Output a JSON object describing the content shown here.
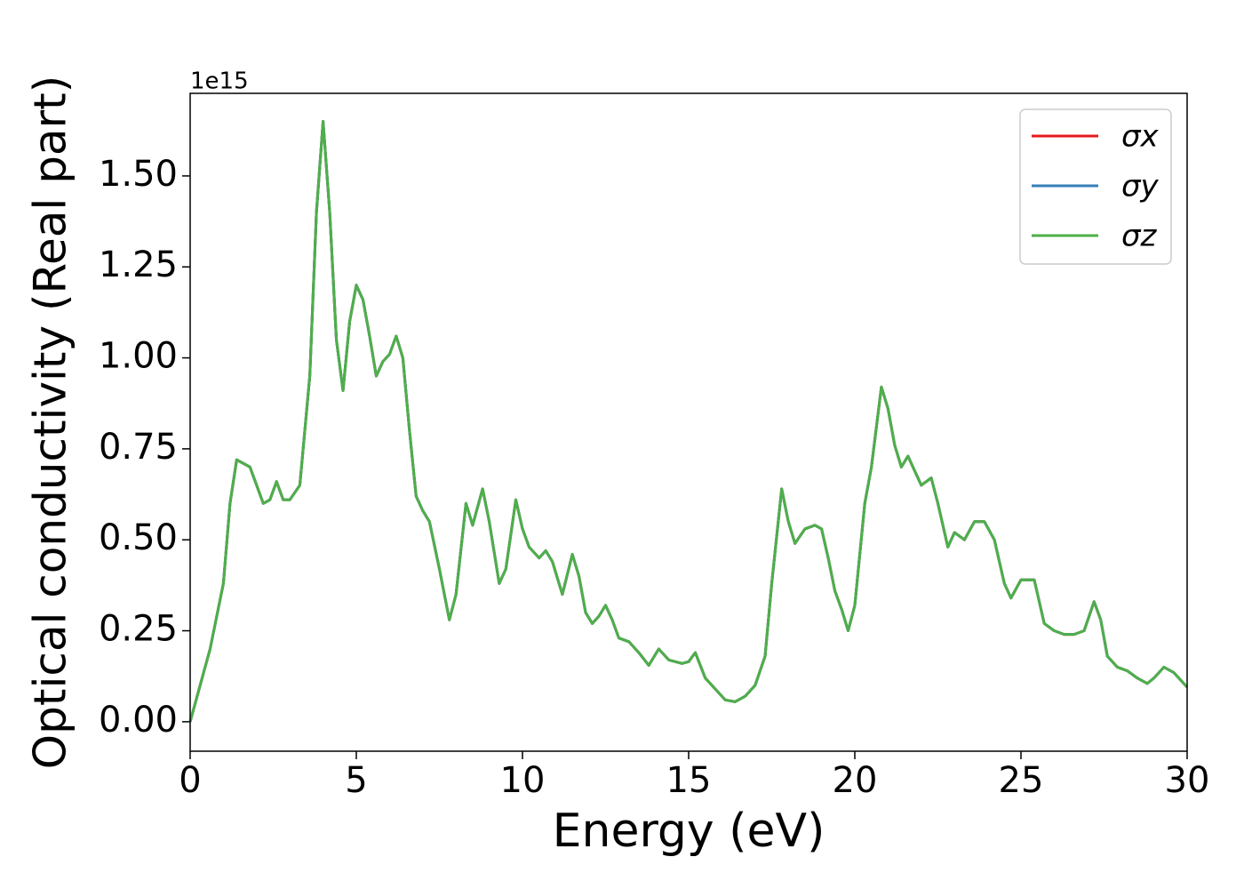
{
  "chart_data": {
    "type": "line",
    "xlabel": "Energy (eV)",
    "ylabel": "Optical conductivity (Real part)",
    "offset_text": "1e15",
    "xlim": [
      0,
      30
    ],
    "xticks": [
      0,
      5,
      10,
      15,
      20,
      25,
      30
    ],
    "ylim": [
      -0.081,
      1.727
    ],
    "yticks": [
      {
        "value": 0,
        "label": "0.00"
      },
      {
        "value": 0.25,
        "label": "0.25"
      },
      {
        "value": 0.5,
        "label": "0.50"
      },
      {
        "value": 0.75,
        "label": "0.75"
      },
      {
        "value": 1.0,
        "label": "1.00"
      },
      {
        "value": 1.25,
        "label": "1.25"
      },
      {
        "value": 1.5,
        "label": "1.50"
      }
    ],
    "legend": "upper right",
    "x": [
      0,
      0.3,
      0.6,
      1.0,
      1.2,
      1.4,
      1.6,
      1.8,
      2.0,
      2.2,
      2.4,
      2.6,
      2.8,
      3.0,
      3.3,
      3.6,
      3.8,
      4.0,
      4.2,
      4.4,
      4.6,
      4.8,
      5.0,
      5.2,
      5.4,
      5.6,
      5.8,
      6.0,
      6.2,
      6.4,
      6.6,
      6.8,
      7.0,
      7.2,
      7.5,
      7.8,
      8.0,
      8.3,
      8.5,
      8.8,
      9.0,
      9.3,
      9.5,
      9.8,
      10.0,
      10.2,
      10.5,
      10.7,
      10.9,
      11.2,
      11.5,
      11.7,
      11.9,
      12.1,
      12.3,
      12.5,
      12.7,
      12.9,
      13.2,
      13.5,
      13.8,
      14.1,
      14.4,
      14.8,
      15.0,
      15.2,
      15.5,
      15.8,
      16.1,
      16.4,
      16.7,
      17.0,
      17.3,
      17.5,
      17.8,
      18.0,
      18.2,
      18.5,
      18.8,
      19.0,
      19.2,
      19.4,
      19.6,
      19.8,
      20.0,
      20.3,
      20.5,
      20.8,
      21.0,
      21.2,
      21.4,
      21.6,
      21.8,
      22.0,
      22.3,
      22.5,
      22.8,
      23.0,
      23.3,
      23.6,
      23.9,
      24.2,
      24.5,
      24.7,
      25.0,
      25.4,
      25.7,
      26.0,
      26.3,
      26.6,
      26.9,
      27.2,
      27.4,
      27.6,
      27.9,
      28.2,
      28.5,
      28.8,
      29.0,
      29.3,
      29.6,
      30.0
    ],
    "series": [
      {
        "name": "σx",
        "color": "#e41a1c",
        "values": [
          0,
          0.1,
          0.2,
          0.38,
          0.6,
          0.72,
          0.71,
          0.7,
          0.65,
          0.6,
          0.61,
          0.66,
          0.61,
          0.61,
          0.65,
          0.95,
          1.4,
          1.65,
          1.4,
          1.05,
          0.91,
          1.1,
          1.2,
          1.16,
          1.06,
          0.95,
          0.99,
          1.01,
          1.06,
          1.0,
          0.8,
          0.62,
          0.58,
          0.55,
          0.42,
          0.28,
          0.35,
          0.6,
          0.54,
          0.64,
          0.55,
          0.38,
          0.42,
          0.61,
          0.53,
          0.48,
          0.45,
          0.47,
          0.44,
          0.35,
          0.46,
          0.4,
          0.3,
          0.27,
          0.29,
          0.32,
          0.28,
          0.23,
          0.22,
          0.19,
          0.155,
          0.2,
          0.17,
          0.16,
          0.165,
          0.19,
          0.12,
          0.09,
          0.06,
          0.055,
          0.07,
          0.1,
          0.18,
          0.38,
          0.64,
          0.55,
          0.49,
          0.53,
          0.54,
          0.53,
          0.45,
          0.36,
          0.31,
          0.25,
          0.32,
          0.6,
          0.7,
          0.92,
          0.86,
          0.76,
          0.7,
          0.73,
          0.69,
          0.65,
          0.67,
          0.6,
          0.48,
          0.52,
          0.5,
          0.55,
          0.55,
          0.5,
          0.38,
          0.34,
          0.39,
          0.39,
          0.27,
          0.25,
          0.24,
          0.24,
          0.25,
          0.33,
          0.28,
          0.18,
          0.15,
          0.14,
          0.12,
          0.105,
          0.12,
          0.15,
          0.135,
          0.095
        ]
      },
      {
        "name": "σy",
        "color": "#377eb8",
        "values": [
          0,
          0.1,
          0.2,
          0.38,
          0.6,
          0.72,
          0.71,
          0.7,
          0.65,
          0.6,
          0.61,
          0.66,
          0.61,
          0.61,
          0.65,
          0.95,
          1.4,
          1.65,
          1.4,
          1.05,
          0.91,
          1.1,
          1.2,
          1.16,
          1.06,
          0.95,
          0.99,
          1.01,
          1.06,
          1.0,
          0.8,
          0.62,
          0.58,
          0.55,
          0.42,
          0.28,
          0.35,
          0.6,
          0.54,
          0.64,
          0.55,
          0.38,
          0.42,
          0.61,
          0.53,
          0.48,
          0.45,
          0.47,
          0.44,
          0.35,
          0.46,
          0.4,
          0.3,
          0.27,
          0.29,
          0.32,
          0.28,
          0.23,
          0.22,
          0.19,
          0.155,
          0.2,
          0.17,
          0.16,
          0.165,
          0.19,
          0.12,
          0.09,
          0.06,
          0.055,
          0.07,
          0.1,
          0.18,
          0.38,
          0.64,
          0.55,
          0.49,
          0.53,
          0.54,
          0.53,
          0.45,
          0.36,
          0.31,
          0.25,
          0.32,
          0.6,
          0.7,
          0.92,
          0.86,
          0.76,
          0.7,
          0.73,
          0.69,
          0.65,
          0.67,
          0.6,
          0.48,
          0.52,
          0.5,
          0.55,
          0.55,
          0.5,
          0.38,
          0.34,
          0.39,
          0.39,
          0.27,
          0.25,
          0.24,
          0.24,
          0.25,
          0.33,
          0.28,
          0.18,
          0.15,
          0.14,
          0.12,
          0.105,
          0.12,
          0.15,
          0.135,
          0.095
        ]
      },
      {
        "name": "σz",
        "color": "#4daf4a",
        "values": [
          0,
          0.1,
          0.2,
          0.38,
          0.6,
          0.72,
          0.71,
          0.7,
          0.65,
          0.6,
          0.61,
          0.66,
          0.61,
          0.61,
          0.65,
          0.95,
          1.4,
          1.65,
          1.4,
          1.05,
          0.91,
          1.1,
          1.2,
          1.16,
          1.06,
          0.95,
          0.99,
          1.01,
          1.06,
          1.0,
          0.8,
          0.62,
          0.58,
          0.55,
          0.42,
          0.28,
          0.35,
          0.6,
          0.54,
          0.64,
          0.55,
          0.38,
          0.42,
          0.61,
          0.53,
          0.48,
          0.45,
          0.47,
          0.44,
          0.35,
          0.46,
          0.4,
          0.3,
          0.27,
          0.29,
          0.32,
          0.28,
          0.23,
          0.22,
          0.19,
          0.155,
          0.2,
          0.17,
          0.16,
          0.165,
          0.19,
          0.12,
          0.09,
          0.06,
          0.055,
          0.07,
          0.1,
          0.18,
          0.38,
          0.64,
          0.55,
          0.49,
          0.53,
          0.54,
          0.53,
          0.45,
          0.36,
          0.31,
          0.25,
          0.32,
          0.6,
          0.7,
          0.92,
          0.86,
          0.76,
          0.7,
          0.73,
          0.69,
          0.65,
          0.67,
          0.6,
          0.48,
          0.52,
          0.5,
          0.55,
          0.55,
          0.5,
          0.38,
          0.34,
          0.39,
          0.39,
          0.27,
          0.25,
          0.24,
          0.24,
          0.25,
          0.33,
          0.28,
          0.18,
          0.15,
          0.14,
          0.12,
          0.105,
          0.12,
          0.15,
          0.135,
          0.095
        ]
      }
    ]
  }
}
